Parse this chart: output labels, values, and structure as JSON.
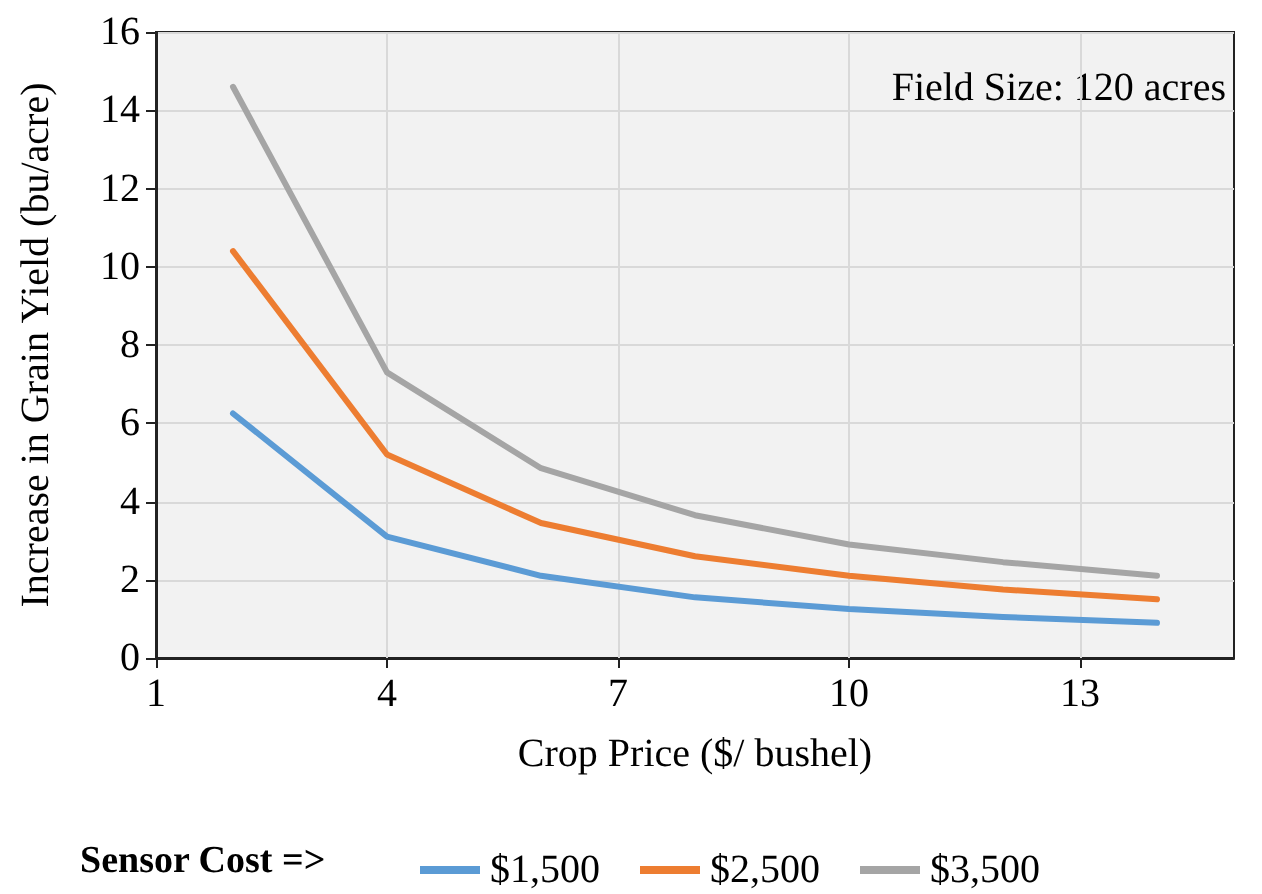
{
  "chart_data": {
    "type": "line",
    "xlabel": "Crop Price ($/ bushel)",
    "ylabel": "Increase in Grain Yield (bu/acre)",
    "legend_title": "Sensor Cost =>",
    "annotations": [
      "Field Size: 120 acres"
    ],
    "x": [
      2,
      4,
      6,
      8,
      10,
      12,
      14
    ],
    "series": [
      {
        "name": "$1,500",
        "color": "#5b9bd5",
        "values": [
          6.25,
          3.1,
          2.1,
          1.55,
          1.25,
          1.05,
          0.9
        ]
      },
      {
        "name": "$2,500",
        "color": "#ed7d31",
        "values": [
          10.4,
          5.2,
          3.45,
          2.6,
          2.1,
          1.75,
          1.5
        ]
      },
      {
        "name": "$3,500",
        "color": "#a5a5a5",
        "values": [
          14.6,
          7.3,
          4.85,
          3.65,
          2.9,
          2.45,
          2.1
        ]
      }
    ],
    "xlim": [
      1,
      15
    ],
    "xticks": [
      1,
      4,
      7,
      10,
      13
    ],
    "ylim": [
      0,
      16
    ],
    "yticks": [
      0,
      2,
      4,
      6,
      8,
      10,
      12,
      14,
      16
    ],
    "grid": true,
    "legend": "bottom",
    "marker": "none",
    "line_style": "solid"
  }
}
